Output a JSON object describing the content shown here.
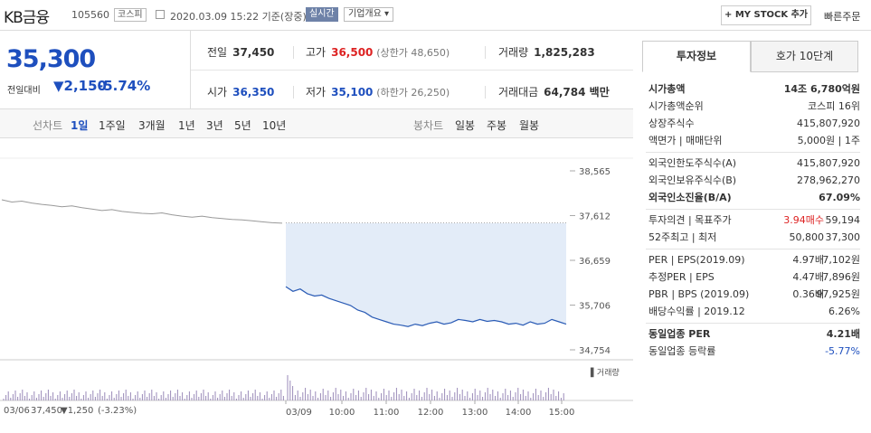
{
  "header": {
    "name": "KB금융",
    "code": "105560",
    "market": "코스피",
    "datetime": "2020.03.09 15:22 기준(장중)",
    "realtime": "실시간",
    "corp_info": "기업개요",
    "mystock": "+ MY STOCK 추가",
    "quick_order": "빠른주문"
  },
  "quote": {
    "price": "35,300",
    "change_label": "전일대비",
    "change": "▼2,150",
    "change_pct": "-5.74%"
  },
  "stats": {
    "prev_label": "전일",
    "prev": "37,450",
    "high_label": "고가",
    "high": "36,500",
    "high_sub": "(상한가 48,650)",
    "volume_label": "거래량",
    "volume": "1,825,283",
    "open_label": "시가",
    "open": "36,350",
    "low_label": "저가",
    "low": "35,100",
    "low_sub": "(하한가 26,250)",
    "amount_label": "거래대금",
    "amount": "64,784 백만"
  },
  "tabs": {
    "line_chart": "선차트",
    "periods": [
      "1일",
      "1주일",
      "3개월",
      "1년",
      "3년",
      "5년",
      "10년"
    ],
    "candle_chart": "봉차트",
    "candles": [
      "일봉",
      "주봉",
      "월봉"
    ]
  },
  "chart_data": {
    "type": "line",
    "y_ticks": [
      "38,565",
      "37,612",
      "36,659",
      "35,706",
      "34,754"
    ],
    "x_ticks": [
      "03/09",
      "10:00",
      "11:00",
      "12:00",
      "13:00",
      "14:00",
      "15:00"
    ],
    "prev_day_label": "03/06",
    "prev_close_value": "37,450",
    "prev_change": "▼1,250",
    "prev_change_pct": "(-3.23%)",
    "volume_label": "거래량",
    "prev_day_series": [
      37.95,
      37.9,
      37.92,
      37.88,
      37.85,
      37.83,
      37.8,
      37.82,
      37.78,
      37.75,
      37.72,
      37.74,
      37.7,
      37.68,
      37.66,
      37.65,
      37.67,
      37.63,
      37.6,
      37.58,
      37.6,
      37.57,
      37.55,
      37.53,
      37.52,
      37.5,
      37.48,
      37.46,
      37.45
    ],
    "today_series": [
      36.1,
      36.0,
      36.05,
      35.95,
      35.9,
      35.92,
      35.85,
      35.8,
      35.75,
      35.7,
      35.6,
      35.55,
      35.45,
      35.4,
      35.35,
      35.3,
      35.28,
      35.25,
      35.3,
      35.27,
      35.32,
      35.35,
      35.3,
      35.33,
      35.4,
      35.38,
      35.35,
      35.4,
      35.36,
      35.38,
      35.35,
      35.3,
      35.32,
      35.28,
      35.35,
      35.3,
      35.32,
      35.4,
      35.35,
      35.3
    ],
    "y_min": 34.754,
    "y_max": 38.565
  },
  "side": {
    "tab_info": "투자정보",
    "tab_hoga": "호가 10단계",
    "rows1": [
      {
        "l": "시가총액",
        "r": "14조 6,780억원"
      },
      {
        "l": "시가총액순위",
        "r": "코스피 16위"
      },
      {
        "l": "상장주식수",
        "r": "415,807,920"
      },
      {
        "l": "액면가 | 매매단위",
        "r": "5,000원 | 1주"
      }
    ],
    "rows2": [
      {
        "l": "외국인한도주식수(A)",
        "r": "415,807,920"
      },
      {
        "l": "외국인보유주식수(B)",
        "r": "278,962,270"
      },
      {
        "l": "외국인소진율(B/A)",
        "r": "67.09%"
      }
    ],
    "rows3": [
      {
        "l": "투자의견 | 목표주가",
        "m": "3.94매수",
        "r": "59,194"
      },
      {
        "l": "52주최고 | 최저",
        "m": "50,800",
        "r": "37,300"
      }
    ],
    "rows4": [
      {
        "l": "PER | EPS(2019.09)",
        "m": "4.97배",
        "r": "7,102원"
      },
      {
        "l": "추정PER | EPS",
        "m": "4.47배",
        "r": "7,896원"
      },
      {
        "l": "PBR | BPS (2019.09)",
        "m": "0.36배",
        "r": "97,925원"
      },
      {
        "l": "배당수익률 | 2019.12",
        "r": "6.26%"
      }
    ],
    "rows5": [
      {
        "l": "동일업종 PER",
        "r": "4.21배"
      },
      {
        "l": "동일업종 등락률",
        "r": "-5.77%"
      }
    ]
  }
}
